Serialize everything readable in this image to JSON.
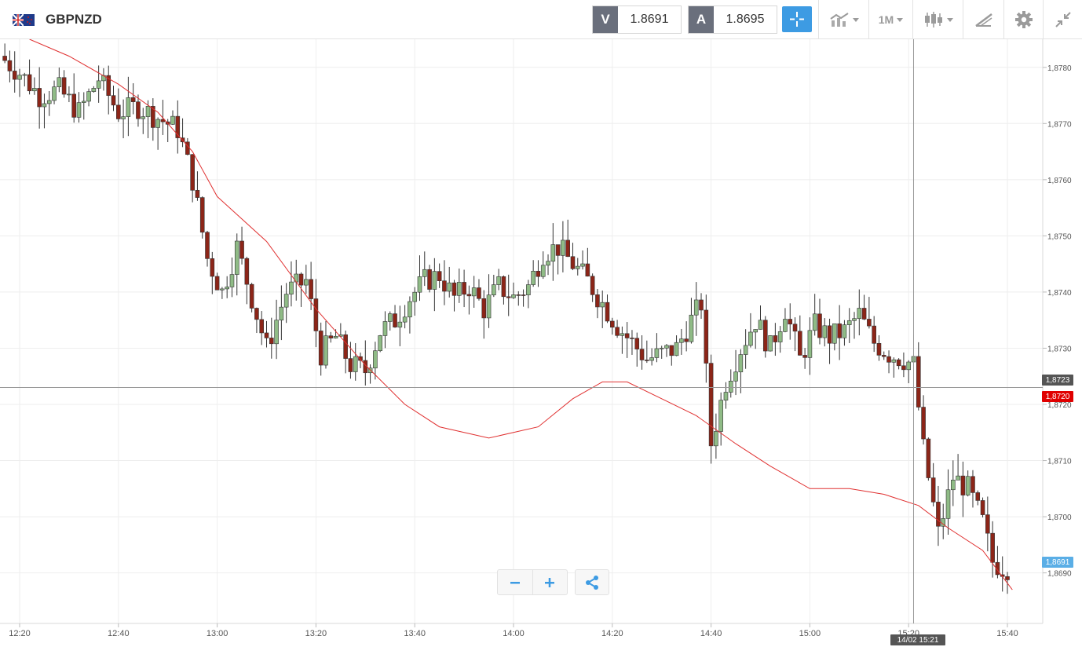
{
  "header": {
    "symbol": "GBPNZD",
    "bid": {
      "label": "V",
      "value": "1.8691"
    },
    "ask": {
      "label": "A",
      "value": "1.8695"
    },
    "timeframe": "1M",
    "icons": [
      "uk-nz-flag-icon",
      "crosshair-icon",
      "indicators-icon",
      "candlestick-icon",
      "drawing-tools-icon",
      "gear-icon",
      "collapse-icon"
    ]
  },
  "colors": {
    "up": "#8fbb86",
    "down": "#8c2518",
    "ma_line": "#e03030",
    "accent": "#3d9be3",
    "current_price": "#5aaee6"
  },
  "chart_data": {
    "type": "candlestick",
    "x_ticks": [
      "12:20",
      "12:40",
      "13:00",
      "13:20",
      "13:40",
      "14:00",
      "14:20",
      "14:40",
      "15:00",
      "15:20",
      "15:40"
    ],
    "y_ticks": [
      "1,8780",
      "1,8770",
      "1,8760",
      "1,8750",
      "1,8740",
      "1,8730",
      "1,8720",
      "1,8710",
      "1,8700",
      "1,8690"
    ],
    "ylim": [
      1.8681,
      1.8785
    ],
    "crosshair_price": "1,8723",
    "crosshair_time": "14/02 15:21",
    "ma_price": "1,8720",
    "current_price": "1,8691",
    "candle_anchors": [
      [
        "12:17",
        1.8782
      ],
      [
        "12:21",
        1.8779
      ],
      [
        "12:25",
        1.8775
      ],
      [
        "12:29",
        1.8776
      ],
      [
        "12:33",
        1.8772
      ],
      [
        "12:37",
        1.8778
      ],
      [
        "12:41",
        1.8772
      ],
      [
        "12:45",
        1.8773
      ],
      [
        "12:49",
        1.8771
      ],
      [
        "12:53",
        1.8769
      ],
      [
        "12:56",
        1.876
      ],
      [
        "12:59",
        1.8746
      ],
      [
        "13:02",
        1.874
      ],
      [
        "13:05",
        1.8748
      ],
      [
        "13:08",
        1.8739
      ],
      [
        "13:11",
        1.873
      ],
      [
        "13:15",
        1.874
      ],
      [
        "13:19",
        1.8742
      ],
      [
        "13:22",
        1.8729
      ],
      [
        "13:25",
        1.8732
      ],
      [
        "13:28",
        1.8727
      ],
      [
        "13:31",
        1.8726
      ],
      [
        "13:34",
        1.8733
      ],
      [
        "13:37",
        1.8735
      ],
      [
        "13:40",
        1.8739
      ],
      [
        "13:43",
        1.8742
      ],
      [
        "13:46",
        1.8743
      ],
      [
        "13:49",
        1.8739
      ],
      [
        "13:52",
        1.8741
      ],
      [
        "13:55",
        1.8737
      ],
      [
        "13:58",
        1.8741
      ],
      [
        "14:01",
        1.8739
      ],
      [
        "14:04",
        1.8741
      ],
      [
        "14:07",
        1.8747
      ],
      [
        "14:10",
        1.8748
      ],
      [
        "14:13",
        1.8745
      ],
      [
        "14:16",
        1.8742
      ],
      [
        "14:19",
        1.8738
      ],
      [
        "14:22",
        1.8734
      ],
      [
        "14:25",
        1.8731
      ],
      [
        "14:28",
        1.8728
      ],
      [
        "14:31",
        1.8729
      ],
      [
        "14:34",
        1.873
      ],
      [
        "14:37",
        1.8735
      ],
      [
        "14:39",
        1.8738
      ],
      [
        "14:41",
        1.8713
      ],
      [
        "14:44",
        1.8724
      ],
      [
        "14:47",
        1.873
      ],
      [
        "14:50",
        1.8735
      ],
      [
        "14:53",
        1.873
      ],
      [
        "14:56",
        1.8737
      ],
      [
        "14:59",
        1.8728
      ],
      [
        "15:02",
        1.8734
      ],
      [
        "15:05",
        1.8732
      ],
      [
        "15:08",
        1.8733
      ],
      [
        "15:11",
        1.8736
      ],
      [
        "15:14",
        1.8731
      ],
      [
        "15:17",
        1.8729
      ],
      [
        "15:20",
        1.8728
      ],
      [
        "15:22",
        1.8727
      ],
      [
        "15:24",
        1.8712
      ],
      [
        "15:27",
        1.8697
      ],
      [
        "15:30",
        1.8707
      ],
      [
        "15:33",
        1.8705
      ],
      [
        "15:36",
        1.8699
      ],
      [
        "15:38",
        1.8692
      ],
      [
        "15:40",
        1.8691
      ]
    ],
    "moving_average": [
      [
        "12:22",
        1.8785
      ],
      [
        "12:30",
        1.8782
      ],
      [
        "12:40",
        1.8777
      ],
      [
        "12:48",
        1.8772
      ],
      [
        "12:55",
        1.8765
      ],
      [
        "13:00",
        1.8757
      ],
      [
        "13:10",
        1.8749
      ],
      [
        "13:20",
        1.8737
      ],
      [
        "13:30",
        1.8727
      ],
      [
        "13:38",
        1.872
      ],
      [
        "13:45",
        1.8716
      ],
      [
        "13:55",
        1.8714
      ],
      [
        "14:05",
        1.8716
      ],
      [
        "14:12",
        1.8721
      ],
      [
        "14:18",
        1.8724
      ],
      [
        "14:23",
        1.8724
      ],
      [
        "14:30",
        1.8721
      ],
      [
        "14:37",
        1.8718
      ],
      [
        "14:45",
        1.8713
      ],
      [
        "14:52",
        1.8709
      ],
      [
        "15:00",
        1.8705
      ],
      [
        "15:08",
        1.8705
      ],
      [
        "15:15",
        1.8704
      ],
      [
        "15:22",
        1.8702
      ],
      [
        "15:28",
        1.8698
      ],
      [
        "15:35",
        1.8694
      ],
      [
        "15:41",
        1.8687
      ]
    ]
  }
}
